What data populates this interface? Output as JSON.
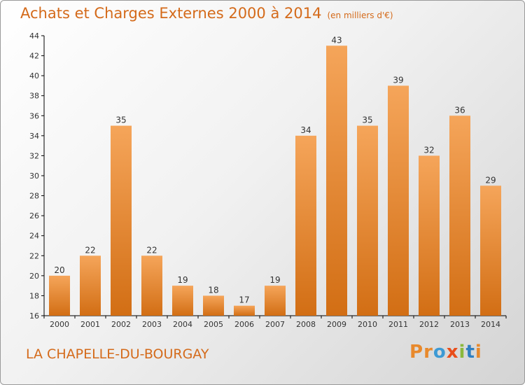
{
  "header": {
    "title": "Achats et Charges Externes 2000 à 2014",
    "subtitle": "(en milliers d'€)"
  },
  "footer": {
    "commune": "LA CHAPELLE-DU-BOURGAY",
    "brand": [
      "P",
      "r",
      "o",
      "x",
      "i",
      "t",
      "i"
    ]
  },
  "colors": {
    "bar_top": "#f5a55a",
    "bar_bottom": "#d26e14",
    "title": "#d46a1a",
    "brand": [
      "#e8892c",
      "#e8892c",
      "#3d9ad4",
      "#e94e1b",
      "#8bb83c",
      "#2f7fc1",
      "#e8892c"
    ]
  },
  "chart_data": {
    "type": "bar",
    "title": "Achats et Charges Externes 2000 à 2014",
    "subtitle": "(en milliers d'€)",
    "categories": [
      "2000",
      "2001",
      "2002",
      "2003",
      "2004",
      "2005",
      "2006",
      "2007",
      "2008",
      "2009",
      "2010",
      "2011",
      "2012",
      "2013",
      "2014"
    ],
    "values": [
      20,
      22,
      35,
      22,
      19,
      18,
      17,
      19,
      34,
      43,
      35,
      39,
      32,
      36,
      29
    ],
    "data_labels": [
      "20",
      "22",
      "35",
      "22",
      "19",
      "18",
      "17",
      "19",
      "34",
      "43",
      "35",
      "39",
      "32",
      "36",
      "29"
    ],
    "ylim": [
      16,
      44
    ],
    "yticks": [
      "16",
      "18",
      "20",
      "22",
      "24",
      "26",
      "28",
      "30",
      "32",
      "34",
      "36",
      "38",
      "40",
      "42",
      "44"
    ],
    "grid": false,
    "xlabel": "",
    "ylabel": ""
  }
}
